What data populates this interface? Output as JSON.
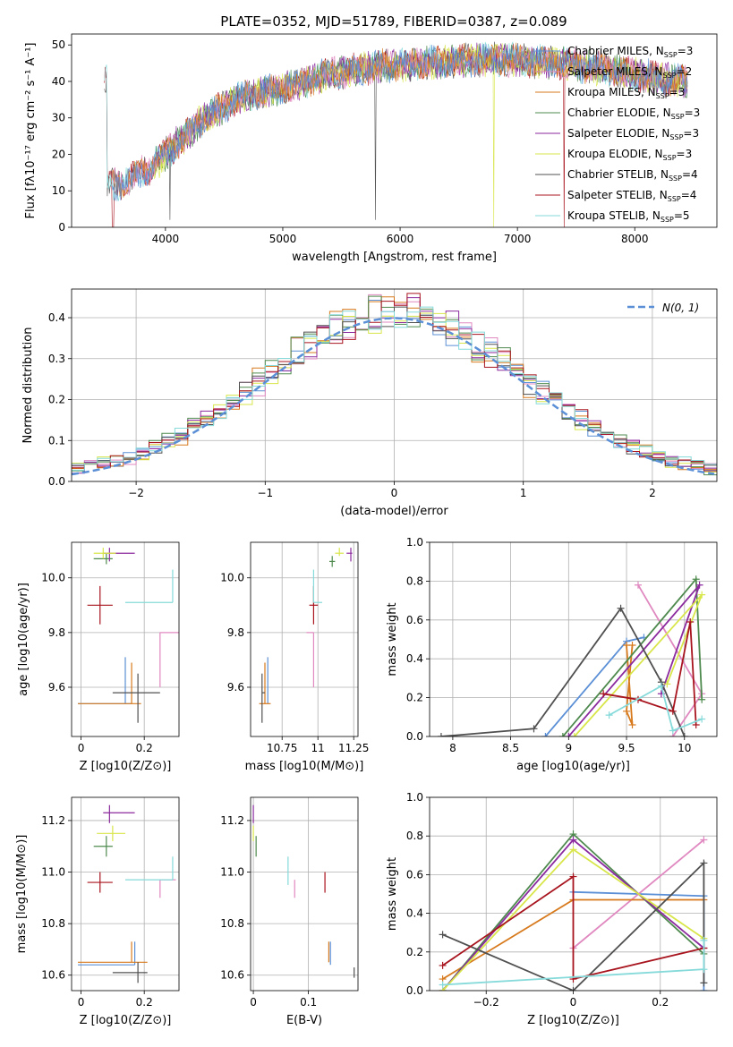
{
  "title": "PLATE=0352, MJD=51789, FIBERID=0387, z=0.089",
  "colors": {
    "chabrier_miles": "#5b8fd6",
    "salpeter_miles": "#e088c0",
    "kroupa_miles": "#d77a1e",
    "chabrier_elodie": "#4e8a4e",
    "salpeter_elodie": "#8b2a9e",
    "kroupa_elodie": "#d8e64a",
    "chabrier_stelib": "#505050",
    "salpeter_stelib": "#a8141e",
    "kroupa_stelib": "#86dada"
  },
  "chart_data": [
    {
      "id": "spectrum",
      "type": "line",
      "xlabel": "wavelength [Angstrom, rest frame]",
      "ylabel": "Flux [fλ10⁻¹⁷ erg cm⁻² s⁻¹ A⁻¹]",
      "xlim": [
        3200,
        8700
      ],
      "ylim": [
        0,
        53
      ],
      "xticks": [
        4000,
        5000,
        6000,
        7000,
        8000
      ],
      "yticks": [
        0,
        10,
        20,
        30,
        40,
        50
      ],
      "grid": false,
      "legend_placement": "top-right",
      "legend": [
        {
          "key": "chabrier_miles",
          "label": "Chabrier MILES, N",
          "sub": "SSP",
          "suffix": "=3"
        },
        {
          "key": "salpeter_miles",
          "label": "Salpeter MILES, N",
          "sub": "SSP",
          "suffix": "=2"
        },
        {
          "key": "kroupa_miles",
          "label": "Kroupa MILES, N",
          "sub": "SSP",
          "suffix": "=3"
        },
        {
          "key": "chabrier_elodie",
          "label": "Chabrier ELODIE, N",
          "sub": "SSP",
          "suffix": "=3"
        },
        {
          "key": "salpeter_elodie",
          "label": "Salpeter ELODIE, N",
          "sub": "SSP",
          "suffix": "=3"
        },
        {
          "key": "kroupa_elodie",
          "label": "Kroupa ELODIE, N",
          "sub": "SSP",
          "suffix": "=3"
        },
        {
          "key": "chabrier_stelib",
          "label": "Chabrier STELIB, N",
          "sub": "SSP",
          "suffix": "=4"
        },
        {
          "key": "salpeter_stelib",
          "label": "Salpeter STELIB, N",
          "sub": "SSP",
          "suffix": "=4"
        },
        {
          "key": "kroupa_stelib",
          "label": "Kroupa STELIB, N",
          "sub": "SSP",
          "suffix": "=5"
        }
      ],
      "continuum": [
        [
          3500,
          11
        ],
        [
          3600,
          12
        ],
        [
          3700,
          13
        ],
        [
          3800,
          15
        ],
        [
          3900,
          17
        ],
        [
          4000,
          20
        ],
        [
          4100,
          23
        ],
        [
          4200,
          26
        ],
        [
          4300,
          29
        ],
        [
          4400,
          31
        ],
        [
          4500,
          33
        ],
        [
          4600,
          35
        ],
        [
          4800,
          37
        ],
        [
          5000,
          38
        ],
        [
          5200,
          40
        ],
        [
          5400,
          42
        ],
        [
          5600,
          43
        ],
        [
          5800,
          44
        ],
        [
          6000,
          44.5
        ],
        [
          6200,
          45
        ],
        [
          6400,
          45.5
        ],
        [
          6600,
          46
        ],
        [
          6800,
          46
        ],
        [
          7000,
          46
        ],
        [
          7200,
          45.5
        ],
        [
          7400,
          45
        ],
        [
          7600,
          44
        ],
        [
          7800,
          43
        ],
        [
          8000,
          42
        ],
        [
          8200,
          41
        ],
        [
          8450,
          40
        ]
      ],
      "wave_range": [
        3480,
        8450
      ]
    },
    {
      "id": "residuals",
      "type": "histogram",
      "xlabel": "(data-model)/error",
      "ylabel": "Normed distribution",
      "xlim": [
        -2.5,
        2.5
      ],
      "ylim": [
        0,
        0.47
      ],
      "xticks": [
        -2,
        -1,
        0,
        1,
        2
      ],
      "yticks": [
        0.0,
        0.1,
        0.2,
        0.3,
        0.4
      ],
      "grid": true,
      "bin_width": 0.1,
      "reference_label": "N(0, 1)",
      "legend_placement": "top-right"
    },
    {
      "id": "age_vs_Z",
      "type": "scatter",
      "xlabel": "Z [log10(Z/Z⊙)]",
      "ylabel": "age [log10(age/yr)]",
      "xlim": [
        -0.03,
        0.31
      ],
      "ylim": [
        9.42,
        10.13
      ],
      "xticks": [
        0.0,
        0.2
      ],
      "yticks": [
        9.6,
        9.8,
        10.0
      ],
      "grid": true,
      "points": [
        {
          "key": "chabrier_miles",
          "x": 0.14,
          "y": 9.54,
          "xerr": [
            0.15,
            0.02
          ],
          "yerr": [
            0.0,
            0.17
          ]
        },
        {
          "key": "salpeter_miles",
          "x": 0.25,
          "y": 9.8,
          "xerr": [
            0.0,
            0.06
          ],
          "yerr": [
            0.2,
            0.0
          ]
        },
        {
          "key": "kroupa_miles",
          "x": 0.16,
          "y": 9.54,
          "xerr": [
            0.17,
            0.03
          ],
          "yerr": [
            0.0,
            0.15
          ]
        },
        {
          "key": "chabrier_elodie",
          "x": 0.08,
          "y": 10.07,
          "xerr": [
            0.04,
            0.02
          ],
          "yerr": [
            0.02,
            0.02
          ]
        },
        {
          "key": "salpeter_elodie",
          "x": 0.09,
          "y": 10.09,
          "xerr": [
            0.02,
            0.08
          ],
          "yerr": [
            0.03,
            0.02
          ]
        },
        {
          "key": "kroupa_elodie",
          "x": 0.07,
          "y": 10.09,
          "xerr": [
            0.03,
            0.04
          ],
          "yerr": [
            0.02,
            0.02
          ]
        },
        {
          "key": "chabrier_stelib",
          "x": 0.18,
          "y": 9.58,
          "xerr": [
            0.08,
            0.07
          ],
          "yerr": [
            0.11,
            0.07
          ]
        },
        {
          "key": "salpeter_stelib",
          "x": 0.06,
          "y": 9.9,
          "xerr": [
            0.04,
            0.04
          ],
          "yerr": [
            0.07,
            0.07
          ]
        },
        {
          "key": "kroupa_stelib",
          "x": 0.29,
          "y": 9.91,
          "xerr": [
            0.15,
            0.0
          ],
          "yerr": [
            0.0,
            0.12
          ]
        }
      ]
    },
    {
      "id": "age_vs_mass",
      "type": "scatter",
      "xlabel": "mass [log10(M/M⊙)]",
      "ylabel": "",
      "xlim": [
        10.53,
        11.28
      ],
      "ylim": [
        9.42,
        10.13
      ],
      "xticks": [
        10.75,
        11.0,
        11.25
      ],
      "yticks": [
        9.6,
        9.8,
        10.0
      ],
      "grid": true,
      "points": [
        {
          "key": "chabrier_miles",
          "x": 10.65,
          "y": 9.54,
          "xerr": [
            0.0,
            0.0
          ],
          "yerr": [
            0.0,
            0.17
          ]
        },
        {
          "key": "salpeter_miles",
          "x": 10.97,
          "y": 9.8,
          "xerr": [
            0.05,
            0.0
          ],
          "yerr": [
            0.2,
            0.0
          ]
        },
        {
          "key": "kroupa_miles",
          "x": 10.63,
          "y": 9.54,
          "xerr": [
            0.04,
            0.04
          ],
          "yerr": [
            0.0,
            0.15
          ]
        },
        {
          "key": "chabrier_elodie",
          "x": 11.1,
          "y": 10.06,
          "xerr": [
            0.02,
            0.02
          ],
          "yerr": [
            0.02,
            0.02
          ]
        },
        {
          "key": "salpeter_elodie",
          "x": 11.23,
          "y": 10.09,
          "xerr": [
            0.03,
            0.01
          ],
          "yerr": [
            0.03,
            0.02
          ]
        },
        {
          "key": "kroupa_elodie",
          "x": 11.15,
          "y": 10.09,
          "xerr": [
            0.03,
            0.03
          ],
          "yerr": [
            0.01,
            0.02
          ]
        },
        {
          "key": "chabrier_stelib",
          "x": 10.61,
          "y": 9.58,
          "xerr": [
            0.0,
            0.02
          ],
          "yerr": [
            0.11,
            0.07
          ]
        },
        {
          "key": "salpeter_stelib",
          "x": 10.97,
          "y": 9.9,
          "xerr": [
            0.03,
            0.03
          ],
          "yerr": [
            0.07,
            0.07
          ]
        },
        {
          "key": "kroupa_stelib",
          "x": 10.97,
          "y": 9.91,
          "xerr": [
            0.0,
            0.06
          ],
          "yerr": [
            0.0,
            0.12
          ]
        }
      ]
    },
    {
      "id": "weight_vs_age",
      "type": "line",
      "xlabel": "age [log10(age/yr)]",
      "ylabel": "mass weight",
      "xlim": [
        7.8,
        10.28
      ],
      "ylim": [
        0.0,
        1.0
      ],
      "xticks": [
        8.0,
        8.5,
        9.0,
        9.5,
        10.0
      ],
      "yticks": [
        0.0,
        0.2,
        0.4,
        0.6,
        0.8,
        1.0
      ],
      "grid": true,
      "series": [
        {
          "key": "chabrier_miles",
          "x": [
            8.8,
            9.5,
            9.65
          ],
          "y": [
            0.0,
            0.49,
            0.51
          ]
        },
        {
          "key": "salpeter_miles",
          "x": [
            9.6,
            10.15,
            9.9
          ],
          "y": [
            0.78,
            0.22,
            0.0
          ]
        },
        {
          "key": "kroupa_miles",
          "x": [
            9.5,
            9.55,
            9.5,
            9.55
          ],
          "y": [
            0.47,
            0.06,
            0.13,
            0.47
          ]
        },
        {
          "key": "chabrier_elodie",
          "x": [
            8.95,
            10.1,
            10.15
          ],
          "y": [
            0.0,
            0.81,
            0.19
          ]
        },
        {
          "key": "salpeter_elodie",
          "x": [
            9.0,
            10.13,
            9.8
          ],
          "y": [
            0.0,
            0.78,
            0.22
          ]
        },
        {
          "key": "kroupa_elodie",
          "x": [
            9.05,
            10.15,
            9.85
          ],
          "y": [
            0.0,
            0.73,
            0.27
          ]
        },
        {
          "key": "chabrier_stelib",
          "x": [
            7.9,
            8.7,
            9.45,
            9.8,
            10.0
          ],
          "y": [
            0.0,
            0.04,
            0.66,
            0.28,
            0.0
          ]
        },
        {
          "key": "salpeter_stelib",
          "x": [
            9.3,
            9.6,
            9.9,
            10.05,
            10.1
          ],
          "y": [
            0.22,
            0.19,
            0.13,
            0.59,
            0.06
          ]
        },
        {
          "key": "kroupa_stelib",
          "x": [
            9.35,
            9.8,
            9.9,
            10.15
          ],
          "y": [
            0.11,
            0.26,
            0.03,
            0.09
          ]
        }
      ]
    },
    {
      "id": "mass_vs_Z",
      "type": "scatter",
      "xlabel": "Z [log10(Z/Z⊙)]",
      "ylabel": "mass [log10(M/M⊙)]",
      "xlim": [
        -0.03,
        0.31
      ],
      "ylim": [
        10.54,
        11.29
      ],
      "xticks": [
        0.0,
        0.2
      ],
      "yticks": [
        10.6,
        10.8,
        11.0,
        11.2
      ],
      "grid": true,
      "points": [
        {
          "key": "chabrier_miles",
          "x": 0.17,
          "y": 10.64,
          "xerr": [
            0.18,
            0.0
          ],
          "yerr": [
            0.0,
            0.09
          ]
        },
        {
          "key": "salpeter_miles",
          "x": 0.25,
          "y": 10.97,
          "xerr": [
            0.0,
            0.05
          ],
          "yerr": [
            0.07,
            0.0
          ]
        },
        {
          "key": "kroupa_miles",
          "x": 0.16,
          "y": 10.65,
          "xerr": [
            0.17,
            0.05
          ],
          "yerr": [
            0.0,
            0.08
          ]
        },
        {
          "key": "chabrier_elodie",
          "x": 0.08,
          "y": 11.1,
          "xerr": [
            0.04,
            0.02
          ],
          "yerr": [
            0.04,
            0.04
          ]
        },
        {
          "key": "salpeter_elodie",
          "x": 0.09,
          "y": 11.23,
          "xerr": [
            0.02,
            0.08
          ],
          "yerr": [
            0.04,
            0.03
          ]
        },
        {
          "key": "kroupa_elodie",
          "x": 0.1,
          "y": 11.15,
          "xerr": [
            0.05,
            0.04
          ],
          "yerr": [
            0.03,
            0.03
          ]
        },
        {
          "key": "chabrier_stelib",
          "x": 0.18,
          "y": 10.61,
          "xerr": [
            0.08,
            0.03
          ],
          "yerr": [
            0.04,
            0.04
          ]
        },
        {
          "key": "salpeter_stelib",
          "x": 0.06,
          "y": 10.96,
          "xerr": [
            0.04,
            0.04
          ],
          "yerr": [
            0.04,
            0.04
          ]
        },
        {
          "key": "kroupa_stelib",
          "x": 0.29,
          "y": 10.97,
          "xerr": [
            0.15,
            0.0
          ],
          "yerr": [
            0.0,
            0.09
          ]
        }
      ]
    },
    {
      "id": "mass_vs_ebv",
      "type": "scatter",
      "xlabel": "E(B-V)",
      "ylabel": "",
      "xlim": [
        -0.005,
        0.19
      ],
      "ylim": [
        10.54,
        11.29
      ],
      "xticks": [
        0.0,
        0.1
      ],
      "yticks": [
        10.6,
        10.8,
        11.0,
        11.2
      ],
      "grid": true,
      "points": [
        {
          "key": "chabrier_miles",
          "x": 0.14,
          "y": 10.64,
          "xerr": [
            0.0,
            0.0
          ],
          "yerr": [
            0.0,
            0.09
          ]
        },
        {
          "key": "salpeter_miles",
          "x": 0.075,
          "y": 10.97,
          "xerr": [
            0.0,
            0.0
          ],
          "yerr": [
            0.07,
            0.0
          ]
        },
        {
          "key": "kroupa_miles",
          "x": 0.137,
          "y": 10.65,
          "xerr": [
            0.0,
            0.0
          ],
          "yerr": [
            0.0,
            0.08
          ]
        },
        {
          "key": "chabrier_elodie",
          "x": 0.005,
          "y": 11.1,
          "xerr": [
            0.0,
            0.0
          ],
          "yerr": [
            0.04,
            0.04
          ]
        },
        {
          "key": "salpeter_elodie",
          "x": 0.0,
          "y": 11.23,
          "xerr": [
            0.0,
            0.0
          ],
          "yerr": [
            0.04,
            0.03
          ]
        },
        {
          "key": "kroupa_elodie",
          "x": 0.0,
          "y": 11.15,
          "xerr": [
            0.0,
            0.0
          ],
          "yerr": [
            0.03,
            0.03
          ]
        },
        {
          "key": "chabrier_stelib",
          "x": 0.183,
          "y": 10.61,
          "xerr": [
            0.0,
            0.0
          ],
          "yerr": [
            0.02,
            0.02
          ]
        },
        {
          "key": "salpeter_stelib",
          "x": 0.13,
          "y": 10.96,
          "xerr": [
            0.0,
            0.0
          ],
          "yerr": [
            0.04,
            0.04
          ]
        },
        {
          "key": "kroupa_stelib",
          "x": 0.063,
          "y": 11.01,
          "xerr": [
            0.0,
            0.0
          ],
          "yerr": [
            0.06,
            0.05
          ]
        }
      ]
    },
    {
      "id": "weight_vs_Z",
      "type": "line",
      "xlabel": "Z [log10(Z/Z⊙)]",
      "ylabel": "mass weight",
      "xlim": [
        -0.33,
        0.33
      ],
      "ylim": [
        0.0,
        1.0
      ],
      "xticks": [
        -0.2,
        0.0,
        0.2
      ],
      "yticks": [
        0.0,
        0.2,
        0.4,
        0.6,
        0.8,
        1.0
      ],
      "grid": true,
      "series": [
        {
          "key": "chabrier_miles",
          "x": [
            0.0,
            0.3,
            0.3
          ],
          "y": [
            0.51,
            0.49,
            0.0
          ]
        },
        {
          "key": "salpeter_miles",
          "x": [
            0.0,
            0.3
          ],
          "y": [
            0.22,
            0.78
          ]
        },
        {
          "key": "kroupa_miles",
          "x": [
            -0.3,
            0.0,
            0.3
          ],
          "y": [
            0.06,
            0.47,
            0.47
          ]
        },
        {
          "key": "chabrier_elodie",
          "x": [
            -0.3,
            0.0,
            0.3
          ],
          "y": [
            0.0,
            0.81,
            0.19
          ]
        },
        {
          "key": "salpeter_elodie",
          "x": [
            -0.3,
            0.0,
            0.3
          ],
          "y": [
            0.0,
            0.78,
            0.22
          ]
        },
        {
          "key": "kroupa_elodie",
          "x": [
            -0.3,
            0.0,
            0.3
          ],
          "y": [
            0.0,
            0.73,
            0.27
          ]
        },
        {
          "key": "chabrier_stelib",
          "x": [
            -0.3,
            0.0,
            0.3,
            0.3
          ],
          "y": [
            0.29,
            0.0,
            0.66,
            0.04
          ]
        },
        {
          "key": "salpeter_stelib",
          "x": [
            -0.3,
            0.0,
            0.0,
            0.3
          ],
          "y": [
            0.13,
            0.59,
            0.06,
            0.22
          ]
        },
        {
          "key": "kroupa_stelib",
          "x": [
            -0.3,
            0.3,
            0.3
          ],
          "y": [
            0.03,
            0.11,
            0.26
          ]
        }
      ]
    }
  ]
}
